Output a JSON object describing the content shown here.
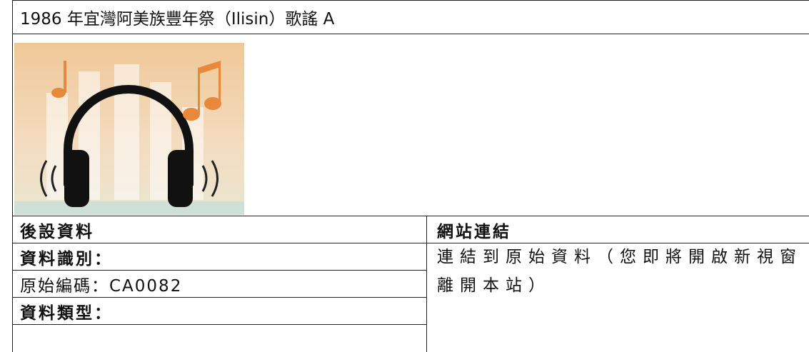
{
  "header": {
    "title": "1986 年宜灣阿美族豐年祭（Ilisin）歌謠 A"
  },
  "metadata": {
    "heading": "後設資料",
    "rows": [
      "資料識別：",
      "原始編碼：CA0082",
      "資料類型："
    ]
  },
  "links": {
    "heading": "網站連結",
    "text": "連結到原始資料（您即將開啟新視窗離開本站）"
  }
}
